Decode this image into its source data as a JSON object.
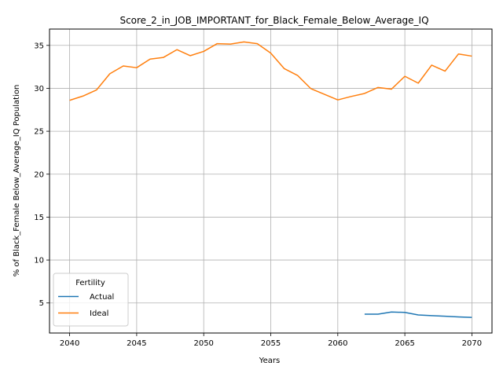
{
  "chart_data": {
    "type": "line",
    "title": "Score_2_in_JOB_IMPORTANT_for_Black_Female_Below_Average_IQ",
    "xlabel": "Years",
    "ylabel": "% of Black_Female Below_Average_IQ Population",
    "xlim": [
      2038.5,
      2071.5
    ],
    "ylim": [
      1.5,
      36.9
    ],
    "xticks": [
      2040,
      2045,
      2050,
      2055,
      2060,
      2065,
      2070
    ],
    "yticks": [
      5,
      10,
      15,
      20,
      25,
      30,
      35
    ],
    "grid": true,
    "legend": {
      "title": "Fertility",
      "placement": "lower-left"
    },
    "series": [
      {
        "name": "Actual",
        "color": "#1f77b4",
        "x": [
          2062,
          2063,
          2064,
          2065,
          2066,
          2067,
          2068,
          2069,
          2070
        ],
        "y": [
          3.7,
          3.7,
          3.95,
          3.9,
          3.6,
          3.52,
          3.45,
          3.38,
          3.32
        ]
      },
      {
        "name": "Ideal",
        "color": "#ff7f0e",
        "x": [
          2040,
          2041,
          2042,
          2043,
          2044,
          2045,
          2046,
          2047,
          2048,
          2049,
          2050,
          2051,
          2052,
          2053,
          2054,
          2055,
          2056,
          2057,
          2058,
          2059,
          2060,
          2061,
          2062,
          2063,
          2064,
          2065,
          2066,
          2067,
          2068,
          2069,
          2070
        ],
        "y": [
          28.6,
          29.1,
          29.8,
          31.7,
          32.6,
          32.4,
          33.4,
          33.6,
          34.5,
          33.8,
          34.3,
          35.2,
          35.15,
          35.4,
          35.2,
          34.1,
          32.3,
          31.5,
          29.95,
          29.3,
          28.65,
          29.05,
          29.4,
          30.1,
          29.9,
          31.4,
          30.6,
          32.7,
          32.0,
          34.0,
          33.75
        ]
      }
    ]
  }
}
